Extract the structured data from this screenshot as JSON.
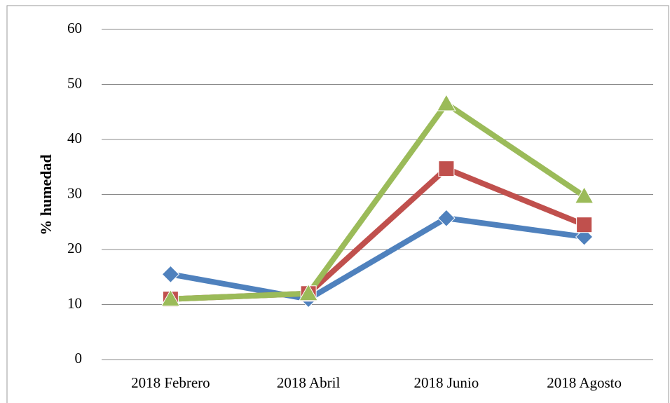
{
  "chart_data": {
    "type": "line",
    "y_label": "% humedad",
    "categories": [
      "2018 Febrero",
      "2018 Abril",
      "2018 Junio",
      "2018 Agosto"
    ],
    "series": [
      {
        "color": "#4f81bd",
        "marker": "diamond",
        "values": [
          15.5,
          11,
          25.7,
          22.3
        ]
      },
      {
        "color": "#c0504d",
        "marker": "square",
        "values": [
          11,
          12,
          34.7,
          24.5
        ]
      },
      {
        "color": "#9bbb59",
        "marker": "triangle",
        "values": [
          11,
          12,
          46.5,
          29.7
        ]
      }
    ],
    "ylim": [
      0,
      60
    ],
    "yticks": [
      0,
      10,
      20,
      30,
      40,
      50,
      60
    ],
    "grid": true
  }
}
